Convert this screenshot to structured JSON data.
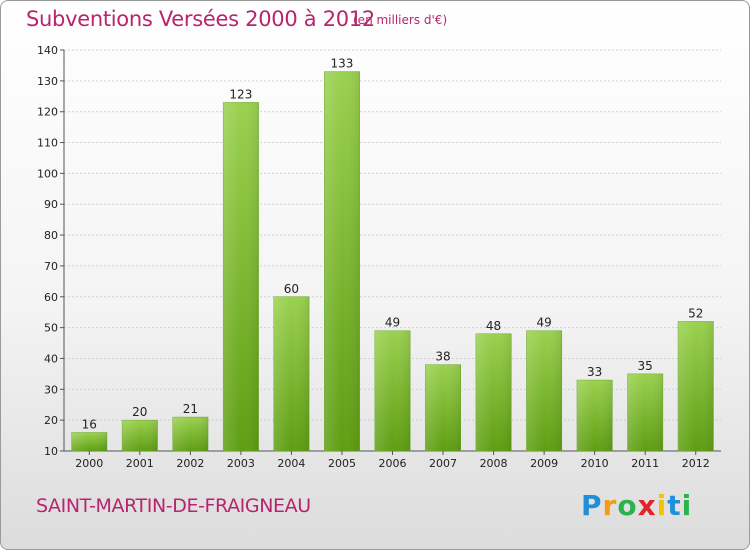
{
  "title": "Subventions Versées 2000 à 2012",
  "subtitle": "(en milliers d'€)",
  "commune": "SAINT-MARTIN-DE-FRAIGNEAU",
  "logo": {
    "text": "Proxiti",
    "letters": [
      "P",
      "r",
      "o",
      "x",
      "i",
      "t",
      "i"
    ]
  },
  "colors": {
    "title": "#b8246e",
    "bar_light": "#9ad14f",
    "bar_dark": "#5e9e12",
    "grid": "#d0d0d0",
    "axis": "#555555"
  },
  "chart_data": {
    "type": "bar",
    "title": "Subventions Versées 2000 à 2012",
    "subtitle": "(en milliers d'€)",
    "categories": [
      "2000",
      "2001",
      "2002",
      "2003",
      "2004",
      "2005",
      "2006",
      "2007",
      "2008",
      "2009",
      "2010",
      "2011",
      "2012"
    ],
    "values": [
      16,
      20,
      21,
      123,
      60,
      133,
      49,
      38,
      48,
      49,
      33,
      35,
      52
    ],
    "ylim": [
      10,
      140
    ],
    "yticks": [
      10,
      20,
      30,
      40,
      50,
      60,
      70,
      80,
      90,
      100,
      110,
      120,
      130,
      140
    ],
    "xlabel": "",
    "ylabel": "",
    "grid": true,
    "legend": "none"
  }
}
